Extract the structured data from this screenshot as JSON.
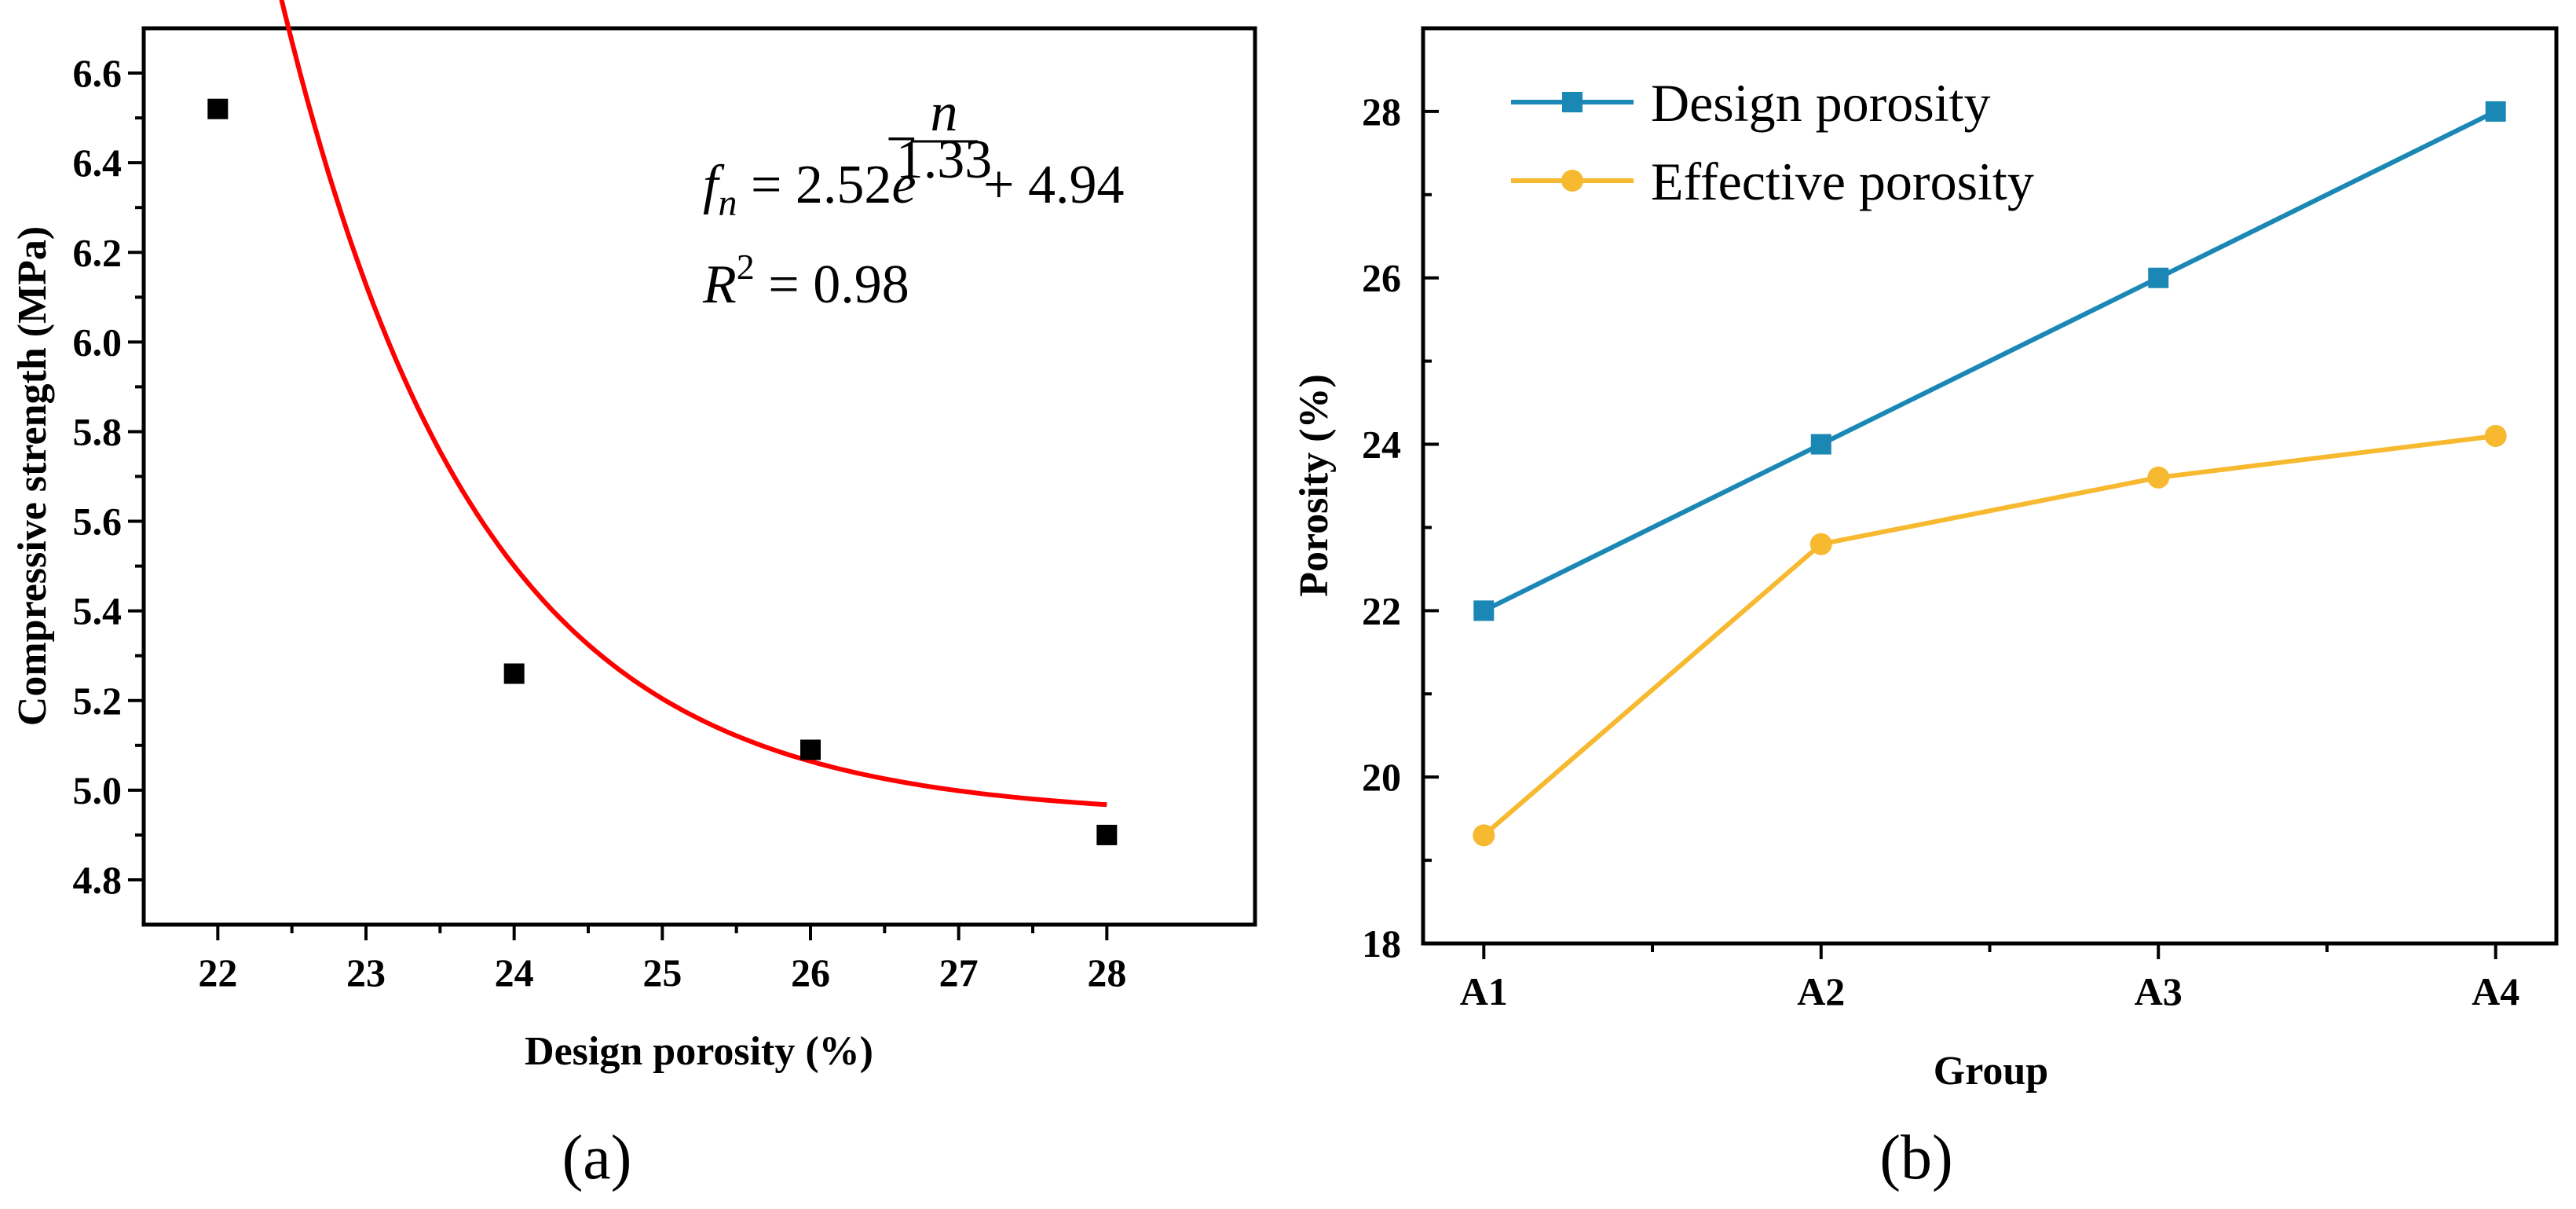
{
  "chart_data": [
    {
      "panel": "(a)",
      "type": "scatter",
      "xlabel": "Design porosity (%)",
      "ylabel": "Compressive strength (MPa)",
      "xlim": [
        21.5,
        29.0
      ],
      "ylim": [
        4.7,
        6.7
      ],
      "xticks": [
        22,
        23,
        24,
        25,
        26,
        27,
        28
      ],
      "yticks": [
        4.8,
        5.0,
        5.2,
        5.4,
        5.6,
        5.8,
        6.0,
        6.2,
        6.4,
        6.6
      ],
      "x": [
        22,
        24,
        26,
        28
      ],
      "y": [
        6.52,
        5.26,
        5.09,
        4.9
      ],
      "marker_color": "#000000",
      "fit": {
        "model": "exponential decay",
        "A": 2.52,
        "t": 1.33,
        "y0": 4.94,
        "x_start": 22,
        "x_range": [
          22,
          28
        ],
        "color": "#ff0000",
        "equation": {
          "f": "f",
          "sub": "n",
          "eq1": " = 2.52",
          "e": "e",
          "exp_minus": "−",
          "exp_num": "n",
          "exp_den": "1.33",
          "tail": " + 4.94",
          "r": "R",
          "r_sup": "2",
          "r_val": " = 0.98"
        }
      }
    },
    {
      "panel": "(b)",
      "type": "line",
      "xlabel": "Group",
      "ylabel": "Porosity (%)",
      "categories": [
        "A1",
        "A2",
        "A3",
        "A4"
      ],
      "ylim": [
        18,
        29
      ],
      "yticks": [
        18,
        20,
        22,
        24,
        26,
        28
      ],
      "legend_position": "top-left",
      "series": [
        {
          "name": "Design porosity",
          "values": [
            22,
            24,
            26,
            28
          ],
          "color": "#1a87b5",
          "marker": "square"
        },
        {
          "name": "Effective porosity",
          "values": [
            19.3,
            22.8,
            23.6,
            24.1
          ],
          "color": "#f7b92f",
          "marker": "circle"
        }
      ]
    }
  ]
}
